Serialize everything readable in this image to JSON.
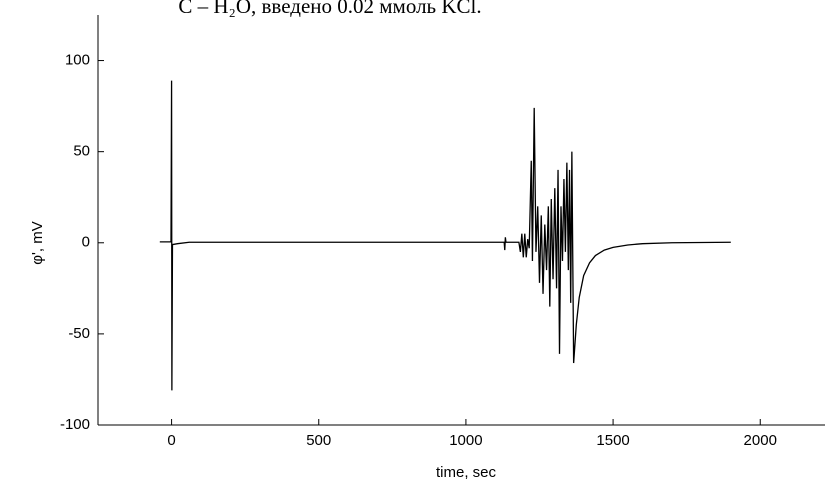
{
  "chart_data": {
    "type": "line",
    "title": "С – H₂O, введено 0.02 ммоль KCl.",
    "x_label": "time, sec",
    "y_label": "φ', mV",
    "xlim": [
      -250,
      2220
    ],
    "ylim": [
      -100,
      125
    ],
    "xticks": [
      0,
      500,
      1000,
      1500,
      2000
    ],
    "yticks": [
      -100,
      -50,
      0,
      50,
      100
    ],
    "series": [
      {
        "color": "#000000",
        "x": [
          -40,
          -2,
          0,
          1,
          3,
          20,
          60,
          1130,
          1132,
          1134,
          1136,
          1180,
          1185,
          1190,
          1195,
          1200,
          1205,
          1210,
          1215,
          1222,
          1226,
          1232,
          1238,
          1244,
          1250,
          1256,
          1262,
          1268,
          1274,
          1280,
          1285,
          1290,
          1296,
          1302,
          1308,
          1313,
          1318,
          1323,
          1328,
          1333,
          1338,
          1343,
          1348,
          1352,
          1356,
          1360,
          1366,
          1375,
          1385,
          1400,
          1420,
          1440,
          1470,
          1500,
          1550,
          1600,
          1700,
          1900
        ],
        "values": [
          0.5,
          0.5,
          89,
          -81,
          -1,
          -0.5,
          0.3,
          0.3,
          -4,
          3,
          0.3,
          0.3,
          -5,
          5,
          -8,
          5,
          -8,
          2,
          -3,
          45,
          -10,
          74,
          -5,
          20,
          -22,
          15,
          -28,
          10,
          -15,
          20,
          -35,
          24,
          -20,
          30,
          -25,
          40,
          -61,
          20,
          -10,
          35,
          -5,
          44,
          -15,
          40,
          -33,
          50,
          -66,
          -45,
          -30,
          -18,
          -11,
          -7,
          -4,
          -2.5,
          -1.2,
          -0.5,
          0,
          0.3
        ]
      }
    ]
  }
}
